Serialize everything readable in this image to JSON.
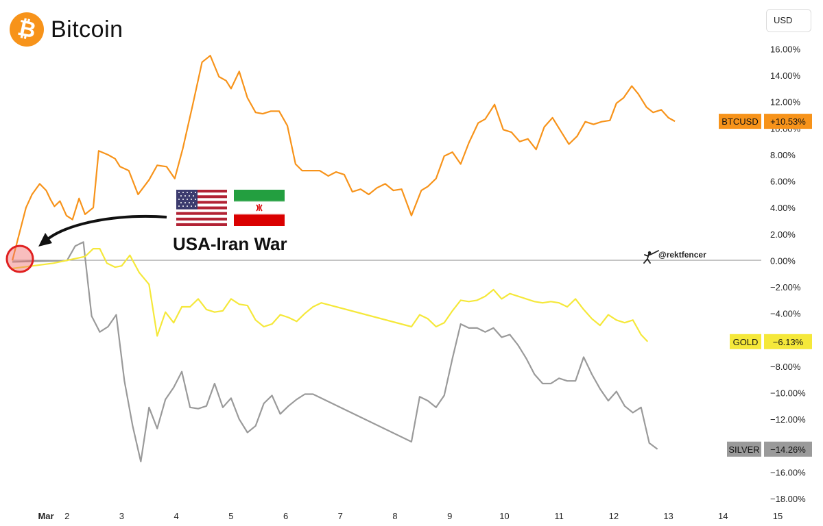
{
  "brand": {
    "name": "Bitcoin",
    "logo_color": "#f7931a",
    "icon": "bitcoin-icon"
  },
  "currency": "USD",
  "annotation": {
    "label": "USA-Iran War",
    "flags": [
      "usa-flag-icon",
      "iran-flag-icon"
    ]
  },
  "watermark": "@rektfencer",
  "chart_data": {
    "type": "line",
    "x_ticks": [
      "Mar",
      "2",
      "3",
      "4",
      "5",
      "6",
      "7",
      "8",
      "9",
      "10",
      "11",
      "12",
      "13",
      "14",
      "15"
    ],
    "xlim": [
      1,
      15
    ],
    "ylim": [
      -18,
      16
    ],
    "y_ticks": [
      "16.00%",
      "14.00%",
      "12.00%",
      "10.00%",
      "8.00%",
      "6.00%",
      "4.00%",
      "2.00%",
      "0.00%",
      "−2.00%",
      "−4.00%",
      "−6.00%",
      "−8.00%",
      "−10.00%",
      "−12.00%",
      "−14.00%",
      "−16.00%",
      "−18.00%"
    ],
    "y_tick_values": [
      16,
      14,
      12,
      10,
      8,
      6,
      4,
      2,
      0,
      -2,
      -4,
      -6,
      -8,
      -10,
      -12,
      -14,
      -16,
      -18
    ],
    "series": [
      {
        "name": "BTCUSD",
        "last_label": "+10.53%",
        "color": "#f7931a",
        "points": [
          [
            1.0,
            0.0
          ],
          [
            1.25,
            4.0
          ],
          [
            1.36,
            5.0
          ],
          [
            1.5,
            5.8
          ],
          [
            1.62,
            5.3
          ],
          [
            1.7,
            4.6
          ],
          [
            1.77,
            4.1
          ],
          [
            1.87,
            4.5
          ],
          [
            1.99,
            3.4
          ],
          [
            2.1,
            3.1
          ],
          [
            2.22,
            4.7
          ],
          [
            2.33,
            3.5
          ],
          [
            2.48,
            4.0
          ],
          [
            2.58,
            8.3
          ],
          [
            2.75,
            8.0
          ],
          [
            2.88,
            7.7
          ],
          [
            2.97,
            7.1
          ],
          [
            3.13,
            6.8
          ],
          [
            3.3,
            5.0
          ],
          [
            3.5,
            6.1
          ],
          [
            3.65,
            7.2
          ],
          [
            3.82,
            7.1
          ],
          [
            3.97,
            6.2
          ],
          [
            4.12,
            8.5
          ],
          [
            4.3,
            11.8
          ],
          [
            4.47,
            15.0
          ],
          [
            4.62,
            15.5
          ],
          [
            4.78,
            13.9
          ],
          [
            4.91,
            13.6
          ],
          [
            5.0,
            13.0
          ],
          [
            5.15,
            14.3
          ],
          [
            5.3,
            12.3
          ],
          [
            5.45,
            11.2
          ],
          [
            5.58,
            11.1
          ],
          [
            5.73,
            11.3
          ],
          [
            5.88,
            11.3
          ],
          [
            6.03,
            10.2
          ],
          [
            6.18,
            7.3
          ],
          [
            6.3,
            6.8
          ],
          [
            6.47,
            6.8
          ],
          [
            6.62,
            6.8
          ],
          [
            6.78,
            6.4
          ],
          [
            6.92,
            6.7
          ],
          [
            7.07,
            6.5
          ],
          [
            7.22,
            5.2
          ],
          [
            7.37,
            5.4
          ],
          [
            7.52,
            5.0
          ],
          [
            7.67,
            5.5
          ],
          [
            7.82,
            5.8
          ],
          [
            7.97,
            5.3
          ],
          [
            8.12,
            5.4
          ],
          [
            8.3,
            3.4
          ],
          [
            8.48,
            5.3
          ],
          [
            8.6,
            5.6
          ],
          [
            8.75,
            6.2
          ],
          [
            8.9,
            7.9
          ],
          [
            9.05,
            8.2
          ],
          [
            9.2,
            7.3
          ],
          [
            9.35,
            8.9
          ],
          [
            9.52,
            10.4
          ],
          [
            9.65,
            10.7
          ],
          [
            9.82,
            11.8
          ],
          [
            9.98,
            9.9
          ],
          [
            10.13,
            9.7
          ],
          [
            10.28,
            9.0
          ],
          [
            10.43,
            9.2
          ],
          [
            10.58,
            8.4
          ],
          [
            10.73,
            10.1
          ],
          [
            10.88,
            10.8
          ],
          [
            11.03,
            9.8
          ],
          [
            11.18,
            8.8
          ],
          [
            11.33,
            9.4
          ],
          [
            11.48,
            10.5
          ],
          [
            11.63,
            10.3
          ],
          [
            11.78,
            10.5
          ],
          [
            11.93,
            10.6
          ],
          [
            12.05,
            11.9
          ],
          [
            12.18,
            12.3
          ],
          [
            12.33,
            13.2
          ],
          [
            12.45,
            12.6
          ],
          [
            12.6,
            11.6
          ],
          [
            12.72,
            11.2
          ],
          [
            12.87,
            11.4
          ],
          [
            13.0,
            10.8
          ],
          [
            13.12,
            10.53
          ]
        ]
      },
      {
        "name": "GOLD",
        "last_label": "−6.13%",
        "color": "#f5e83a",
        "points": [
          [
            1.0,
            -0.6
          ],
          [
            1.75,
            -0.2
          ],
          [
            2.33,
            0.3
          ],
          [
            2.48,
            0.9
          ],
          [
            2.6,
            0.9
          ],
          [
            2.73,
            -0.2
          ],
          [
            2.88,
            -0.5
          ],
          [
            3.0,
            -0.4
          ],
          [
            3.15,
            0.4
          ],
          [
            3.32,
            -0.9
          ],
          [
            3.5,
            -1.8
          ],
          [
            3.65,
            -5.7
          ],
          [
            3.8,
            -3.9
          ],
          [
            3.95,
            -4.7
          ],
          [
            4.1,
            -3.5
          ],
          [
            4.25,
            -3.5
          ],
          [
            4.4,
            -2.9
          ],
          [
            4.55,
            -3.7
          ],
          [
            4.7,
            -3.9
          ],
          [
            4.85,
            -3.8
          ],
          [
            5.0,
            -2.9
          ],
          [
            5.15,
            -3.3
          ],
          [
            5.3,
            -3.4
          ],
          [
            5.45,
            -4.5
          ],
          [
            5.6,
            -5.0
          ],
          [
            5.75,
            -4.8
          ],
          [
            5.9,
            -4.1
          ],
          [
            6.05,
            -4.3
          ],
          [
            6.2,
            -4.6
          ],
          [
            6.35,
            -4.0
          ],
          [
            6.5,
            -3.5
          ],
          [
            6.65,
            -3.2
          ],
          [
            8.3,
            -5.0
          ],
          [
            8.45,
            -4.1
          ],
          [
            8.6,
            -4.4
          ],
          [
            8.75,
            -5.0
          ],
          [
            8.9,
            -4.7
          ],
          [
            9.05,
            -3.8
          ],
          [
            9.2,
            -3.0
          ],
          [
            9.35,
            -3.1
          ],
          [
            9.5,
            -3.0
          ],
          [
            9.65,
            -2.7
          ],
          [
            9.8,
            -2.2
          ],
          [
            9.95,
            -2.9
          ],
          [
            10.1,
            -2.5
          ],
          [
            10.25,
            -2.7
          ],
          [
            10.4,
            -2.9
          ],
          [
            10.55,
            -3.1
          ],
          [
            10.7,
            -3.2
          ],
          [
            10.85,
            -3.1
          ],
          [
            11.0,
            -3.2
          ],
          [
            11.15,
            -3.5
          ],
          [
            11.3,
            -2.9
          ],
          [
            11.45,
            -3.7
          ],
          [
            11.6,
            -4.4
          ],
          [
            11.75,
            -4.9
          ],
          [
            11.9,
            -4.1
          ],
          [
            12.05,
            -4.5
          ],
          [
            12.2,
            -4.7
          ],
          [
            12.35,
            -4.5
          ],
          [
            12.5,
            -5.6
          ],
          [
            12.62,
            -6.13
          ]
        ]
      },
      {
        "name": "SILVER",
        "last_label": "−14.26%",
        "color": "#9a9a9a",
        "points": [
          [
            1.0,
            -0.1
          ],
          [
            2.0,
            0.0
          ],
          [
            2.15,
            1.1
          ],
          [
            2.3,
            1.4
          ],
          [
            2.45,
            -4.2
          ],
          [
            2.6,
            -5.4
          ],
          [
            2.75,
            -5.0
          ],
          [
            2.9,
            -4.1
          ],
          [
            3.05,
            -9.1
          ],
          [
            3.2,
            -12.5
          ],
          [
            3.35,
            -15.2
          ],
          [
            3.5,
            -11.1
          ],
          [
            3.65,
            -12.7
          ],
          [
            3.8,
            -10.5
          ],
          [
            3.95,
            -9.6
          ],
          [
            4.1,
            -8.4
          ],
          [
            4.25,
            -11.1
          ],
          [
            4.4,
            -11.2
          ],
          [
            4.55,
            -11.0
          ],
          [
            4.7,
            -9.3
          ],
          [
            4.85,
            -11.1
          ],
          [
            5.0,
            -10.4
          ],
          [
            5.15,
            -12.0
          ],
          [
            5.3,
            -13.0
          ],
          [
            5.45,
            -12.5
          ],
          [
            5.6,
            -10.8
          ],
          [
            5.75,
            -10.2
          ],
          [
            5.9,
            -11.6
          ],
          [
            6.05,
            -11.0
          ],
          [
            6.2,
            -10.5
          ],
          [
            6.35,
            -10.1
          ],
          [
            6.5,
            -10.1
          ],
          [
            8.3,
            -13.7
          ],
          [
            8.45,
            -10.3
          ],
          [
            8.6,
            -10.6
          ],
          [
            8.75,
            -11.1
          ],
          [
            8.9,
            -10.2
          ],
          [
            9.05,
            -7.4
          ],
          [
            9.2,
            -4.8
          ],
          [
            9.35,
            -5.1
          ],
          [
            9.5,
            -5.1
          ],
          [
            9.65,
            -5.4
          ],
          [
            9.8,
            -5.1
          ],
          [
            9.95,
            -5.8
          ],
          [
            10.1,
            -5.6
          ],
          [
            10.25,
            -6.4
          ],
          [
            10.4,
            -7.4
          ],
          [
            10.55,
            -8.6
          ],
          [
            10.7,
            -9.3
          ],
          [
            10.85,
            -9.3
          ],
          [
            11.0,
            -8.9
          ],
          [
            11.15,
            -9.1
          ],
          [
            11.3,
            -9.1
          ],
          [
            11.45,
            -7.3
          ],
          [
            11.6,
            -8.6
          ],
          [
            11.75,
            -9.7
          ],
          [
            11.9,
            -10.6
          ],
          [
            12.05,
            -9.9
          ],
          [
            12.2,
            -11.0
          ],
          [
            12.35,
            -11.5
          ],
          [
            12.5,
            -11.1
          ],
          [
            12.65,
            -13.8
          ],
          [
            12.8,
            -14.26
          ]
        ]
      }
    ]
  }
}
